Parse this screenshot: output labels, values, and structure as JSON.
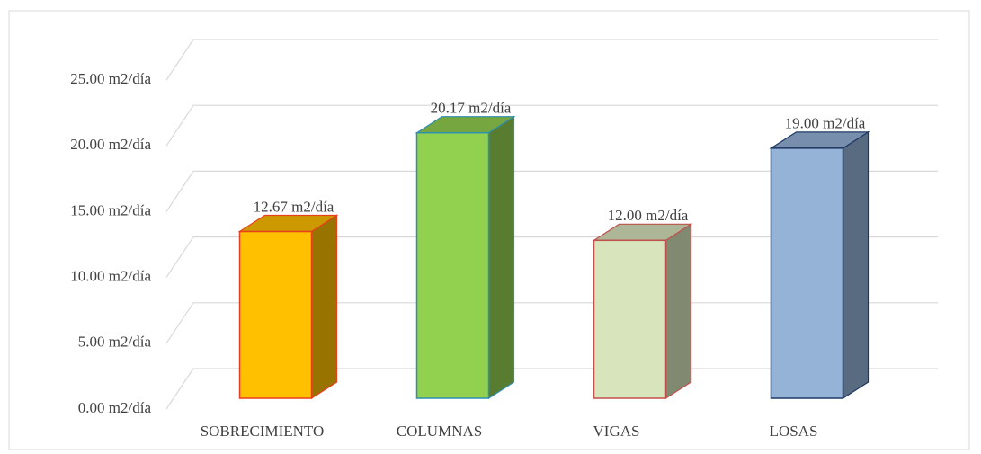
{
  "chart_data": {
    "type": "bar3d",
    "categories": [
      "SOBRECIMIENTO",
      "COLUMNAS",
      "VIGAS",
      "LOSAS"
    ],
    "values": [
      12.67,
      20.17,
      12.0,
      19.0
    ],
    "value_labels": [
      "12.67 m2/día",
      "20.17 m2/día",
      "12.00 m2/día",
      "19.00 m2/día"
    ],
    "colors": [
      "#ffc000",
      "#92d050",
      "#d8e4bc",
      "#95b3d7"
    ],
    "edge_colors": [
      "#e8401c",
      "#2e8fb0",
      "#c0504d",
      "#1f3864"
    ],
    "ylim": [
      0,
      25
    ],
    "yticks": [
      {
        "value": 0,
        "label": "0.00 m2/día"
      },
      {
        "value": 5,
        "label": "5.00 m2/día"
      },
      {
        "value": 10,
        "label": "10.00 m2/día"
      },
      {
        "value": 15,
        "label": "15.00 m2/día"
      },
      {
        "value": 20,
        "label": "20.00 m2/día"
      },
      {
        "value": 25,
        "label": "25.00 m2/día"
      }
    ],
    "grid": true
  }
}
